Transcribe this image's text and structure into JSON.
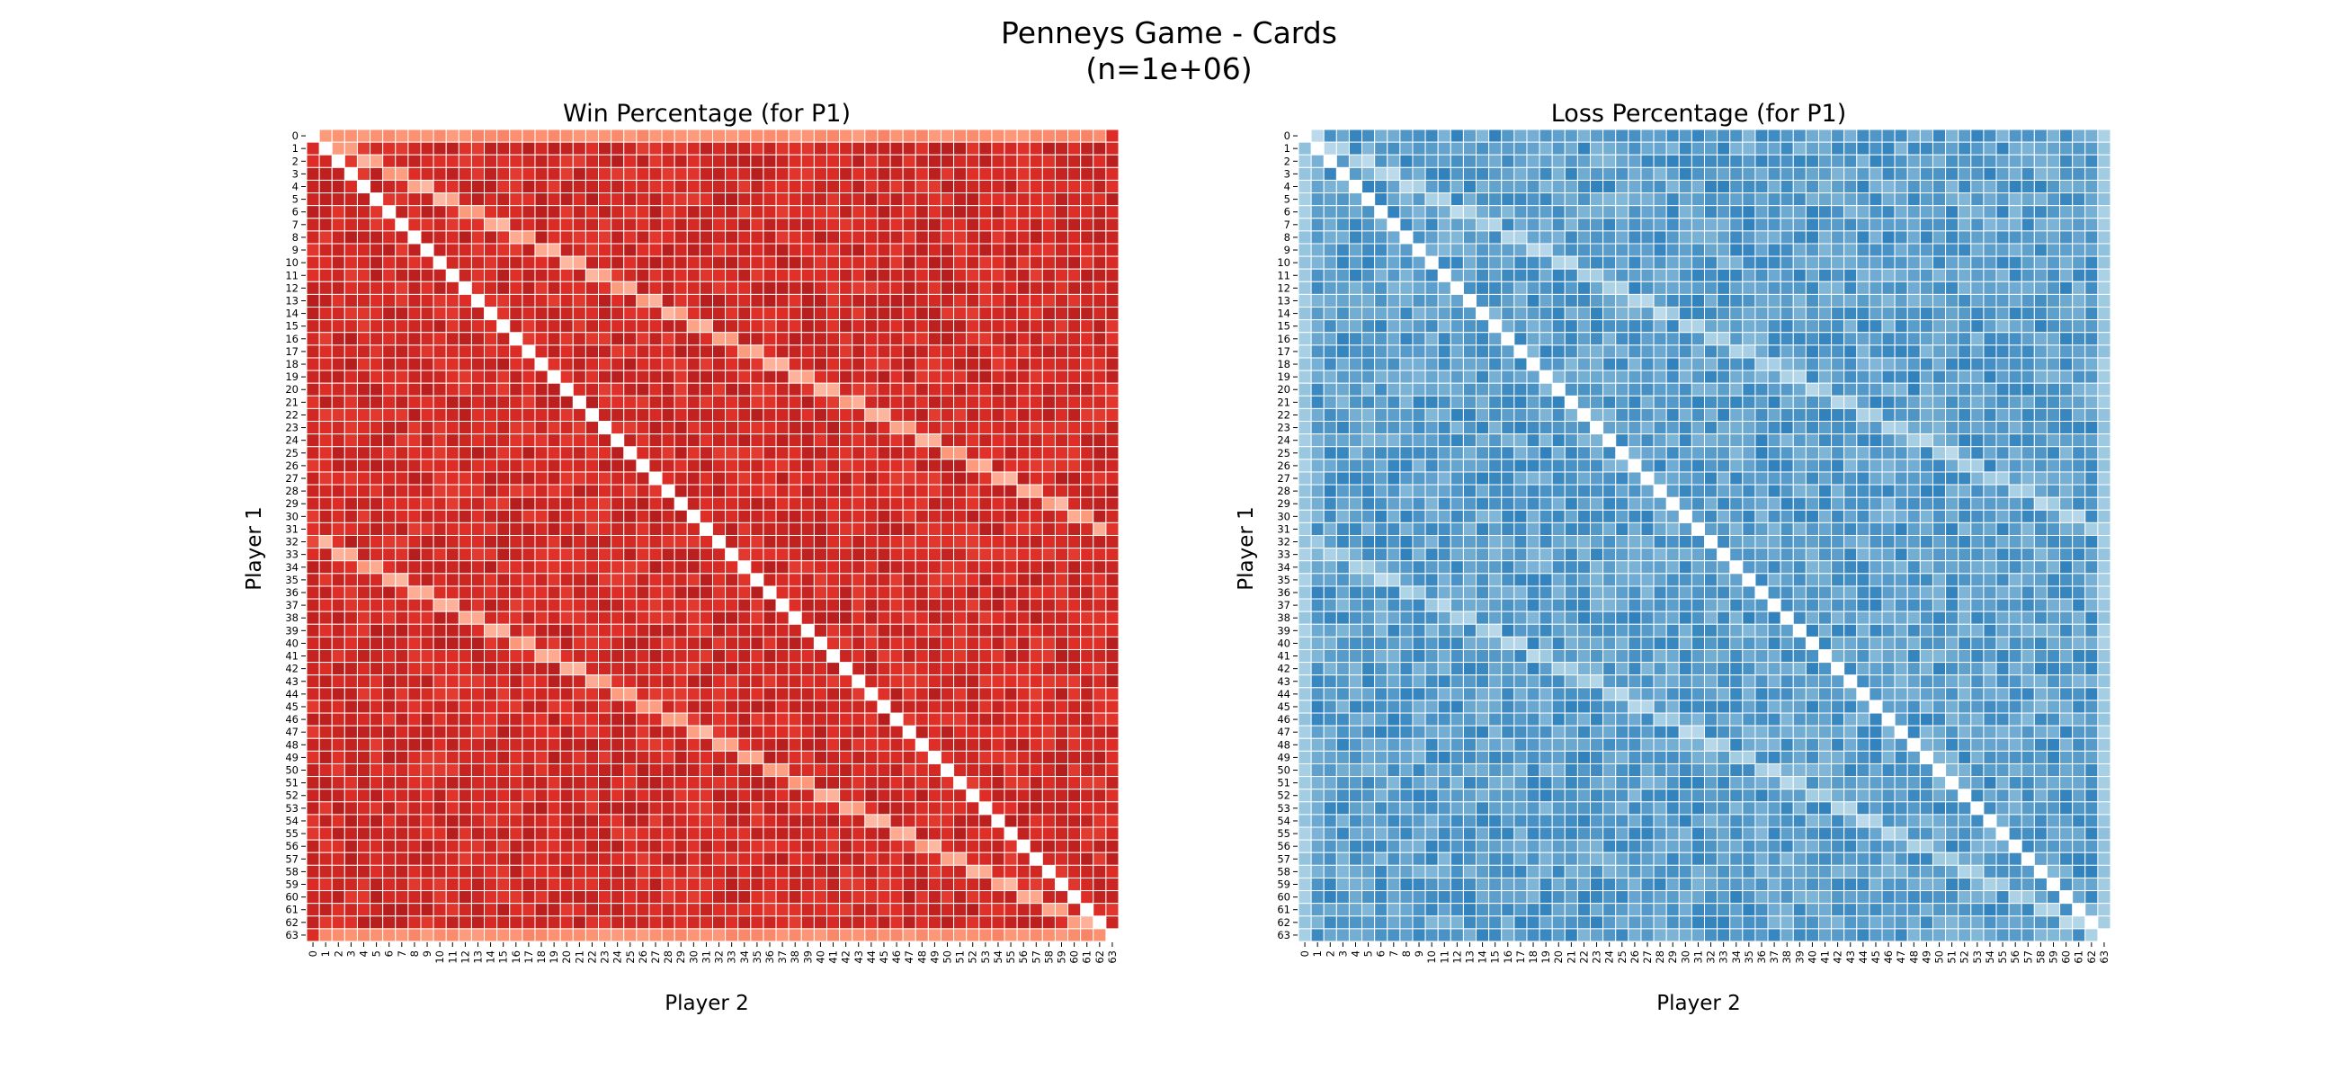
{
  "figure": {
    "title_line1": "Penneys Game - Cards",
    "title_line2": "(n=1e+06)"
  },
  "chart_data": [
    {
      "type": "heatmap",
      "title": "Win Percentage (for P1)",
      "xlabel": "Player 2",
      "ylabel": "Player 1",
      "x_ticks": [
        0,
        1,
        2,
        3,
        4,
        5,
        6,
        7,
        8,
        9,
        10,
        11,
        12,
        13,
        14,
        15,
        16,
        17,
        18,
        19,
        20,
        21,
        22,
        23,
        24,
        25,
        26,
        27,
        28,
        29,
        30,
        31,
        32,
        33,
        34,
        35,
        36,
        37,
        38,
        39,
        40,
        41,
        42,
        43,
        44,
        45,
        46,
        47,
        48,
        49,
        50,
        51,
        52,
        53,
        54,
        55,
        56,
        57,
        58,
        59,
        60,
        61,
        62,
        63
      ],
      "y_ticks": [
        0,
        1,
        2,
        3,
        4,
        5,
        6,
        7,
        8,
        9,
        10,
        11,
        12,
        13,
        14,
        15,
        16,
        17,
        18,
        19,
        20,
        21,
        22,
        23,
        24,
        25,
        26,
        27,
        28,
        29,
        30,
        31,
        32,
        33,
        34,
        35,
        36,
        37,
        38,
        39,
        40,
        41,
        42,
        43,
        44,
        45,
        46,
        47,
        48,
        49,
        50,
        51,
        52,
        53,
        54,
        55,
        56,
        57,
        58,
        59,
        60,
        61,
        62,
        63
      ],
      "colormap": "Reds",
      "colors": {
        "low": "#fff5f0",
        "high": "#67000d"
      },
      "diagonal": "blank",
      "grid": true,
      "colorbar": false,
      "values": "64x64 matrix, index [p1][p2]; diagonal cells blank; generated by script pattern: base ~0.5, lighter (lower) where p2 = 2*p1 mod 64 (+1), row 0 / row 63 uniformly lighter, column 0 blank at row 0/63 corner"
    },
    {
      "type": "heatmap",
      "title": "Loss Percentage (for P1)",
      "xlabel": "Player 2",
      "ylabel": "Player 1",
      "x_ticks": [
        0,
        1,
        2,
        3,
        4,
        5,
        6,
        7,
        8,
        9,
        10,
        11,
        12,
        13,
        14,
        15,
        16,
        17,
        18,
        19,
        20,
        21,
        22,
        23,
        24,
        25,
        26,
        27,
        28,
        29,
        30,
        31,
        32,
        33,
        34,
        35,
        36,
        37,
        38,
        39,
        40,
        41,
        42,
        43,
        44,
        45,
        46,
        47,
        48,
        49,
        50,
        51,
        52,
        53,
        54,
        55,
        56,
        57,
        58,
        59,
        60,
        61,
        62,
        63
      ],
      "y_ticks": [
        0,
        1,
        2,
        3,
        4,
        5,
        6,
        7,
        8,
        9,
        10,
        11,
        12,
        13,
        14,
        15,
        16,
        17,
        18,
        19,
        20,
        21,
        22,
        23,
        24,
        25,
        26,
        27,
        28,
        29,
        30,
        31,
        32,
        33,
        34,
        35,
        36,
        37,
        38,
        39,
        40,
        41,
        42,
        43,
        44,
        45,
        46,
        47,
        48,
        49,
        50,
        51,
        52,
        53,
        54,
        55,
        56,
        57,
        58,
        59,
        60,
        61,
        62,
        63
      ],
      "colormap": "Blues",
      "colors": {
        "low": "#f7fbff",
        "high": "#08306b"
      },
      "diagonal": "blank",
      "grid": true,
      "colorbar": false,
      "values": "64x64 matrix, index [p1][p2]; diagonal cells blank; complementary to win matrix"
    }
  ]
}
